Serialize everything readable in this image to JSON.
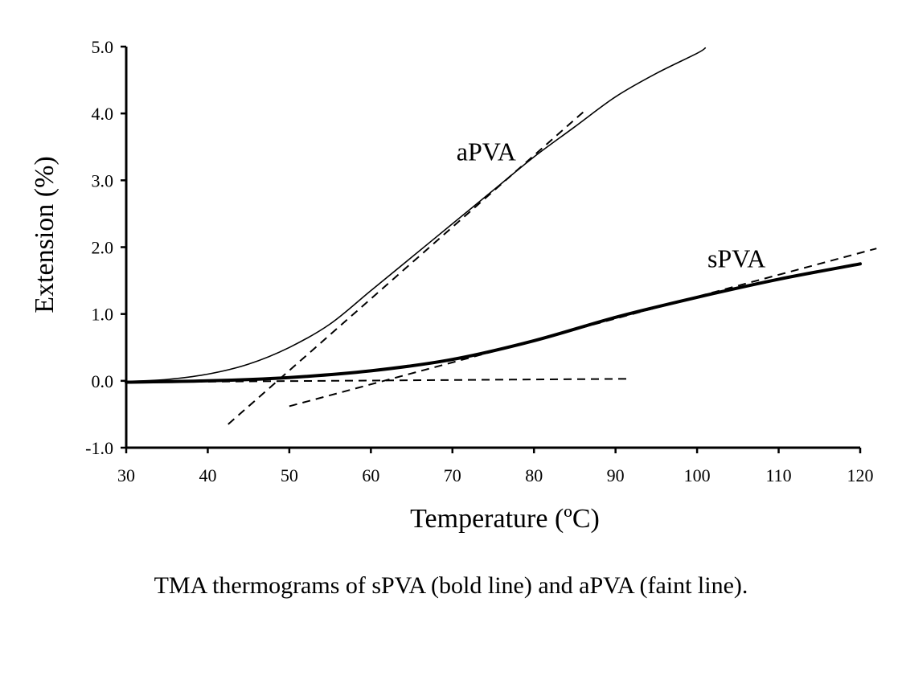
{
  "chart_data": {
    "type": "line",
    "xlabel": "Temperature (ºC)",
    "ylabel": "Extension (%)",
    "xlim": [
      30,
      120
    ],
    "ylim": [
      -1.0,
      5.0
    ],
    "x_ticks": [
      "30",
      "40",
      "50",
      "60",
      "70",
      "80",
      "90",
      "100",
      "110",
      "120"
    ],
    "y_ticks": [
      "-1.0",
      "0.0",
      "1.0",
      "2.0",
      "3.0",
      "4.0",
      "5.0"
    ],
    "grid": false,
    "legend": "none",
    "series": [
      {
        "name": "aPVA",
        "style": "faint",
        "x": [
          30,
          35,
          40,
          45,
          50,
          55,
          60,
          65,
          70,
          75,
          80,
          85,
          90,
          95,
          100,
          101
        ],
        "y": [
          -0.01,
          0.02,
          0.1,
          0.25,
          0.5,
          0.85,
          1.35,
          1.85,
          2.35,
          2.85,
          3.35,
          3.8,
          4.25,
          4.6,
          4.9,
          4.98
        ]
      },
      {
        "name": "sPVA",
        "style": "bold",
        "x": [
          30,
          40,
          50,
          60,
          70,
          80,
          90,
          100,
          110,
          120
        ],
        "y": [
          -0.02,
          0.0,
          0.05,
          0.15,
          0.32,
          0.6,
          0.95,
          1.25,
          1.52,
          1.75
        ]
      }
    ],
    "tangent_lines": [
      {
        "x": [
          42.5,
          86.5
        ],
        "y": [
          -0.65,
          4.07
        ]
      },
      {
        "x": [
          30,
          91.5
        ],
        "y": [
          -0.02,
          0.03
        ]
      },
      {
        "x": [
          50,
          122
        ],
        "y": [
          -0.38,
          1.98
        ]
      }
    ],
    "annotations": [
      {
        "text": "aPVA",
        "x": 77.8,
        "y": 3.3
      },
      {
        "text": "sPVA",
        "x": 108.4,
        "y": 1.7
      }
    ]
  },
  "caption": "TMA thermograms of sPVA (bold line) and aPVA (faint line)."
}
